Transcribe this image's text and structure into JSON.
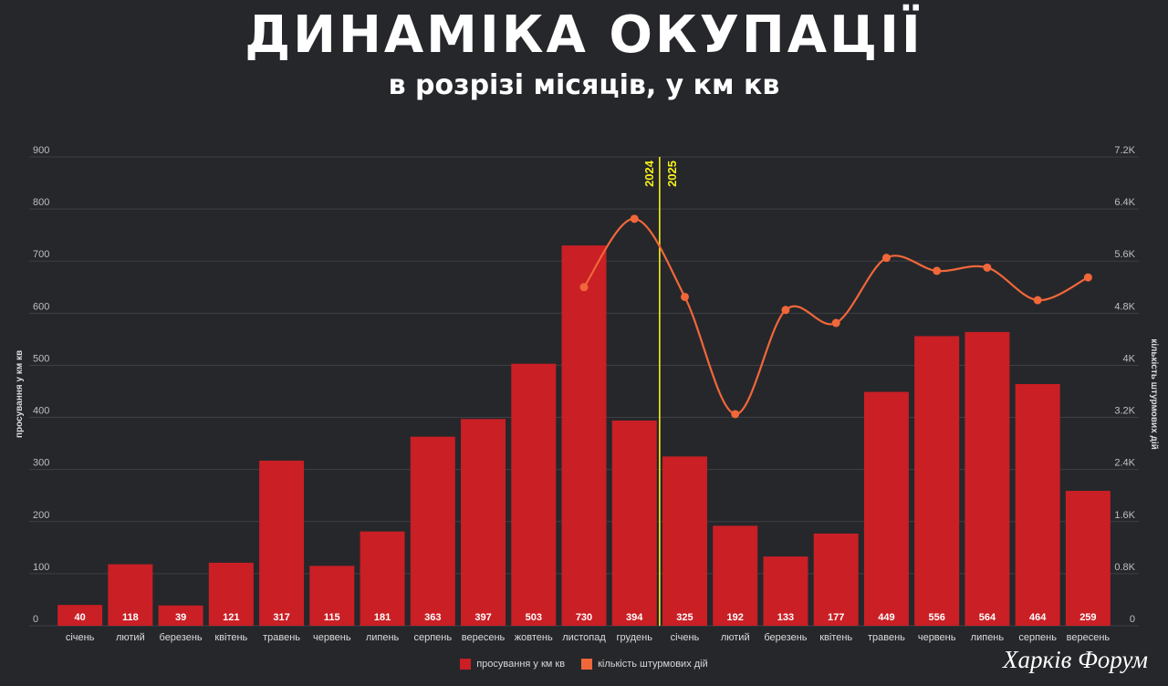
{
  "header": {
    "title": "ДИНАМІКА ОКУПАЦІЇ",
    "subtitle": "в розрізі місяців, у км кв"
  },
  "watermark": "Харків Форум",
  "colors": {
    "bars": "#c91f25",
    "line": "#f0673a",
    "divider": "#f5ef1c",
    "grid": "#3e3f44",
    "background": "#26272b"
  },
  "chart_data": {
    "type": "bar",
    "categories": [
      "січень",
      "лютий",
      "березень",
      "квітень",
      "травень",
      "червень",
      "липень",
      "серпень",
      "вересень",
      "жовтень",
      "листопад",
      "грудень",
      "січень",
      "лютий",
      "березень",
      "квітень",
      "травень",
      "червень",
      "липень",
      "серпень",
      "вересень"
    ],
    "series": [
      {
        "name": "просування у км кв",
        "type": "bar",
        "axis": "left",
        "values": [
          40,
          118,
          39,
          121,
          317,
          115,
          181,
          363,
          397,
          503,
          730,
          394,
          325,
          192,
          133,
          177,
          449,
          556,
          564,
          464,
          259
        ]
      },
      {
        "name": "кількість штурмових дій",
        "type": "line",
        "axis": "right",
        "values": [
          null,
          null,
          null,
          null,
          null,
          null,
          null,
          null,
          null,
          null,
          5200,
          6250,
          5050,
          3250,
          4850,
          4650,
          5650,
          5450,
          5500,
          5000,
          5350
        ]
      }
    ],
    "ylabel": "просування у км кв",
    "y2label": "кількість штурмових дій",
    "ylim": [
      0,
      900
    ],
    "yticks": [
      0,
      100,
      200,
      300,
      400,
      500,
      600,
      700,
      800,
      900
    ],
    "y2lim": [
      0,
      7200
    ],
    "y2ticks": [
      "0",
      "0.8K",
      "1.6K",
      "2.4K",
      "3.2K",
      "4K",
      "4.8K",
      "5.6K",
      "6.4K",
      "7.2K"
    ],
    "year_divider": {
      "after_index": 11,
      "left_label": "2024",
      "right_label": "2025"
    },
    "grid": true,
    "legend": "bottom-center"
  }
}
